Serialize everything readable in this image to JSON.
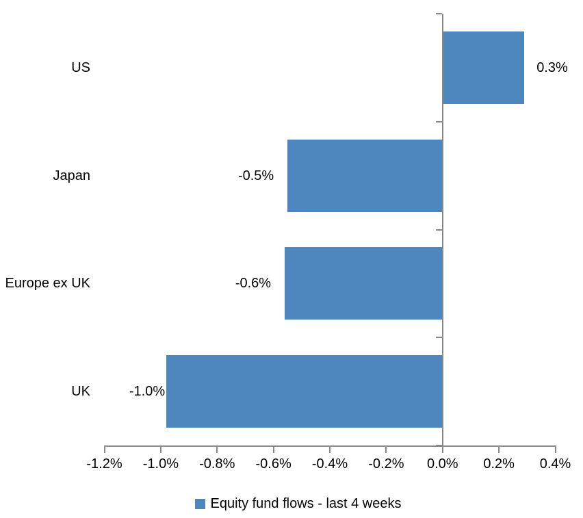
{
  "chart_data": {
    "type": "bar",
    "orientation": "horizontal",
    "title": "",
    "categories": [
      "US",
      "Japan",
      "Europe ex UK",
      "UK"
    ],
    "values": [
      0.29,
      -0.55,
      -0.56,
      -0.98
    ],
    "data_labels": [
      "0.3%",
      "-0.5%",
      "-0.6%",
      "-1.0%"
    ],
    "value_unit": "%",
    "xlim": [
      -1.2,
      0.4
    ],
    "x_ticks": {
      "values": [
        -1.2,
        -1.0,
        -0.8,
        -0.6,
        -0.4,
        -0.2,
        0.0,
        0.2,
        0.4
      ],
      "labels": [
        "-1.2%",
        "-1.0%",
        "-0.8%",
        "-0.6%",
        "-0.4%",
        "-0.2%",
        "0.0%",
        "0.2%",
        "0.4%"
      ]
    },
    "grid": false,
    "legend": {
      "position": "bottom",
      "label": "Equity fund flows - last 4 weeks"
    },
    "colors": {
      "bar": "#4D87BE",
      "axis": "#898989",
      "text": "#000000",
      "background": "#FFFFFF"
    }
  }
}
